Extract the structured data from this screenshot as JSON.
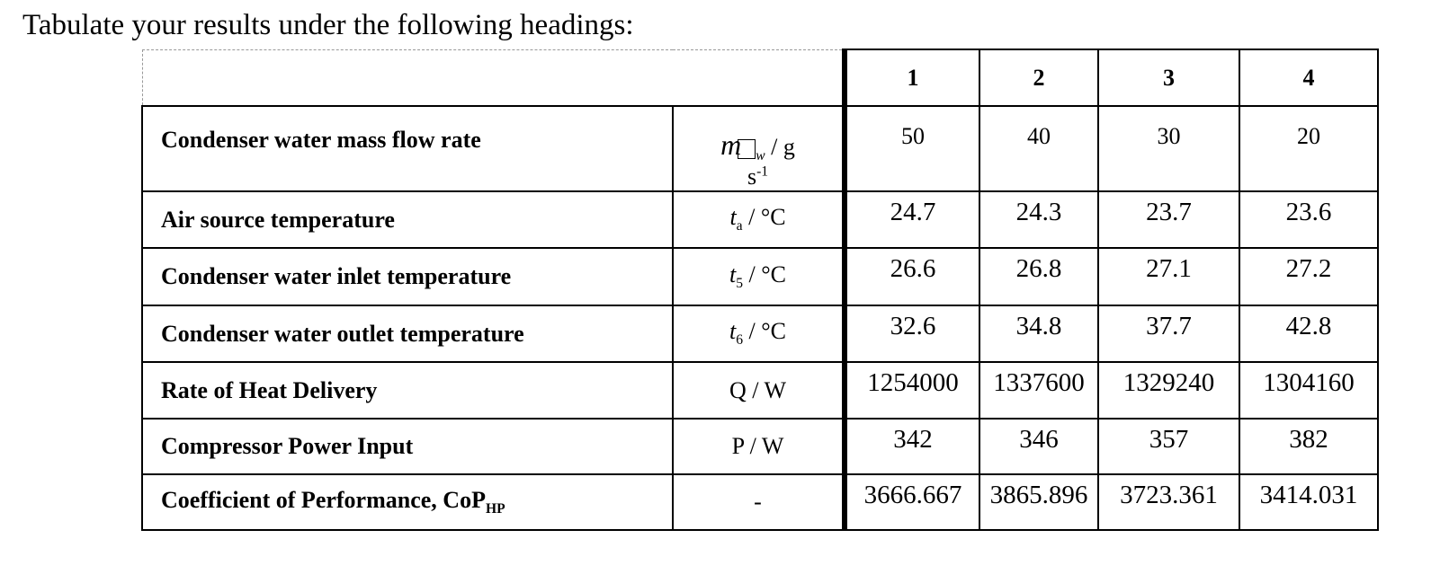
{
  "heading": "Tabulate your results under the following headings:",
  "table": {
    "columns": [
      "1",
      "2",
      "3",
      "4"
    ],
    "rows": [
      {
        "label": "Condenser water mass flow rate",
        "unit_sym": "m",
        "unit_sub": "w",
        "unit_rest": " / g",
        "unit_line2": "s",
        "unit_sup": "-1",
        "values": [
          "50",
          "40",
          "30",
          "20"
        ]
      },
      {
        "label": "Air source temperature",
        "unit_sym": "t",
        "unit_sub": "a",
        "unit_rest": " / °C",
        "values": [
          "24.7",
          "24.3",
          "23.7",
          "23.6"
        ]
      },
      {
        "label": "Condenser water inlet temperature",
        "unit_sym": "t",
        "unit_sub": "5",
        "unit_rest": " / °C",
        "values": [
          "26.6",
          "26.8",
          "27.1",
          "27.2"
        ]
      },
      {
        "label": "Condenser water outlet temperature",
        "unit_sym": "t",
        "unit_sub": "6",
        "unit_rest": " / °C",
        "values": [
          "32.6",
          "34.8",
          "37.7",
          "42.8"
        ]
      },
      {
        "label": "Rate of Heat Delivery",
        "unit_rest": "Q / W",
        "values": [
          "1254000",
          "1337600",
          "1329240",
          "1304160"
        ]
      },
      {
        "label": "Compressor Power Input",
        "unit_rest": "P / W",
        "values": [
          "342",
          "346",
          "357",
          "382"
        ]
      },
      {
        "label": "Coefficient of Performance, CoP",
        "label_sub": "HP",
        "unit_rest": "-",
        "values": [
          "3666.667",
          "3865.896",
          "3723.361",
          "3414.031"
        ]
      }
    ]
  }
}
